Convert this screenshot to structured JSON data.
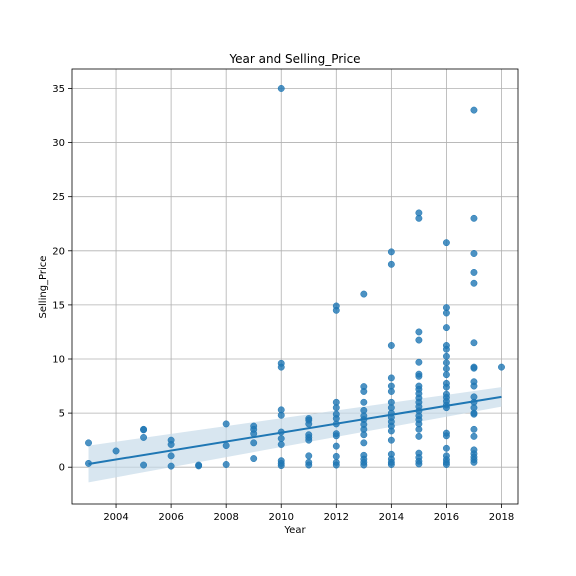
{
  "chart_data": {
    "type": "scatter",
    "title": "Year and Selling_Price",
    "xlabel": "Year",
    "ylabel": "Selling_Price",
    "xlim": [
      2002.4,
      2018.6
    ],
    "ylim": [
      -3.4,
      36.8
    ],
    "xticks": [
      2004,
      2006,
      2008,
      2010,
      2012,
      2014,
      2016,
      2018
    ],
    "yticks": [
      0,
      5,
      10,
      15,
      20,
      25,
      30,
      35
    ],
    "grid": true,
    "color": "#1f77b4",
    "ci_color": "#c8dcea",
    "regression": {
      "x": [
        2003,
        2018
      ],
      "y": [
        0.3,
        6.5
      ],
      "ci_lower": [
        -1.4,
        5.6
      ],
      "ci_upper": [
        2.0,
        7.4
      ]
    },
    "points": [
      {
        "x": 2003,
        "y": 2.25
      },
      {
        "x": 2003,
        "y": 0.35
      },
      {
        "x": 2004,
        "y": 1.5
      },
      {
        "x": 2005,
        "y": 3.5
      },
      {
        "x": 2005,
        "y": 3.45
      },
      {
        "x": 2005,
        "y": 2.75
      },
      {
        "x": 2005,
        "y": 0.2
      },
      {
        "x": 2006,
        "y": 2.5
      },
      {
        "x": 2006,
        "y": 2.1
      },
      {
        "x": 2006,
        "y": 1.05
      },
      {
        "x": 2006,
        "y": 0.1
      },
      {
        "x": 2007,
        "y": 0.2
      },
      {
        "x": 2007,
        "y": 0.12
      },
      {
        "x": 2008,
        "y": 4.0
      },
      {
        "x": 2008,
        "y": 2.0
      },
      {
        "x": 2008,
        "y": 0.25
      },
      {
        "x": 2009,
        "y": 3.8
      },
      {
        "x": 2009,
        "y": 3.5
      },
      {
        "x": 2009,
        "y": 3.1
      },
      {
        "x": 2009,
        "y": 2.25
      },
      {
        "x": 2009,
        "y": 0.8
      },
      {
        "x": 2010,
        "y": 35.0
      },
      {
        "x": 2010,
        "y": 9.6
      },
      {
        "x": 2010,
        "y": 9.25
      },
      {
        "x": 2010,
        "y": 5.3
      },
      {
        "x": 2010,
        "y": 4.8
      },
      {
        "x": 2010,
        "y": 3.25
      },
      {
        "x": 2010,
        "y": 2.65
      },
      {
        "x": 2010,
        "y": 2.1
      },
      {
        "x": 2010,
        "y": 0.6
      },
      {
        "x": 2010,
        "y": 0.35
      },
      {
        "x": 2010,
        "y": 0.15
      },
      {
        "x": 2011,
        "y": 4.5
      },
      {
        "x": 2011,
        "y": 4.35
      },
      {
        "x": 2011,
        "y": 4.0
      },
      {
        "x": 2011,
        "y": 3.0
      },
      {
        "x": 2011,
        "y": 2.75
      },
      {
        "x": 2011,
        "y": 2.5
      },
      {
        "x": 2011,
        "y": 1.05
      },
      {
        "x": 2011,
        "y": 0.45
      },
      {
        "x": 2011,
        "y": 0.2
      },
      {
        "x": 2012,
        "y": 14.9
      },
      {
        "x": 2012,
        "y": 14.5
      },
      {
        "x": 2012,
        "y": 6.0
      },
      {
        "x": 2012,
        "y": 5.5
      },
      {
        "x": 2012,
        "y": 4.9
      },
      {
        "x": 2012,
        "y": 4.5
      },
      {
        "x": 2012,
        "y": 4.0
      },
      {
        "x": 2012,
        "y": 3.1
      },
      {
        "x": 2012,
        "y": 2.9
      },
      {
        "x": 2012,
        "y": 1.95
      },
      {
        "x": 2012,
        "y": 1.0
      },
      {
        "x": 2012,
        "y": 0.45
      },
      {
        "x": 2012,
        "y": 0.2
      },
      {
        "x": 2013,
        "y": 16.0
      },
      {
        "x": 2013,
        "y": 7.45
      },
      {
        "x": 2013,
        "y": 7.0
      },
      {
        "x": 2013,
        "y": 6.0
      },
      {
        "x": 2013,
        "y": 5.25
      },
      {
        "x": 2013,
        "y": 4.75
      },
      {
        "x": 2013,
        "y": 4.4
      },
      {
        "x": 2013,
        "y": 3.95
      },
      {
        "x": 2013,
        "y": 3.5
      },
      {
        "x": 2013,
        "y": 3.0
      },
      {
        "x": 2013,
        "y": 2.25
      },
      {
        "x": 2013,
        "y": 1.1
      },
      {
        "x": 2013,
        "y": 0.75
      },
      {
        "x": 2013,
        "y": 0.45
      },
      {
        "x": 2013,
        "y": 0.2
      },
      {
        "x": 2014,
        "y": 19.9
      },
      {
        "x": 2014,
        "y": 18.75
      },
      {
        "x": 2014,
        "y": 11.25
      },
      {
        "x": 2014,
        "y": 8.25
      },
      {
        "x": 2014,
        "y": 7.5
      },
      {
        "x": 2014,
        "y": 7.0
      },
      {
        "x": 2014,
        "y": 6.0
      },
      {
        "x": 2014,
        "y": 5.5
      },
      {
        "x": 2014,
        "y": 5.0
      },
      {
        "x": 2014,
        "y": 4.6
      },
      {
        "x": 2014,
        "y": 4.2
      },
      {
        "x": 2014,
        "y": 3.8
      },
      {
        "x": 2014,
        "y": 3.35
      },
      {
        "x": 2014,
        "y": 2.5
      },
      {
        "x": 2014,
        "y": 1.2
      },
      {
        "x": 2014,
        "y": 0.75
      },
      {
        "x": 2014,
        "y": 0.45
      },
      {
        "x": 2014,
        "y": 0.25
      },
      {
        "x": 2015,
        "y": 23.5
      },
      {
        "x": 2015,
        "y": 23.0
      },
      {
        "x": 2015,
        "y": 12.5
      },
      {
        "x": 2015,
        "y": 11.75
      },
      {
        "x": 2015,
        "y": 9.7
      },
      {
        "x": 2015,
        "y": 8.6
      },
      {
        "x": 2015,
        "y": 8.4
      },
      {
        "x": 2015,
        "y": 7.5
      },
      {
        "x": 2015,
        "y": 7.2
      },
      {
        "x": 2015,
        "y": 6.8
      },
      {
        "x": 2015,
        "y": 6.4
      },
      {
        "x": 2015,
        "y": 6.0
      },
      {
        "x": 2015,
        "y": 5.6
      },
      {
        "x": 2015,
        "y": 5.2
      },
      {
        "x": 2015,
        "y": 4.75
      },
      {
        "x": 2015,
        "y": 4.4
      },
      {
        "x": 2015,
        "y": 4.0
      },
      {
        "x": 2015,
        "y": 3.5
      },
      {
        "x": 2015,
        "y": 2.85
      },
      {
        "x": 2015,
        "y": 1.3
      },
      {
        "x": 2015,
        "y": 0.9
      },
      {
        "x": 2015,
        "y": 0.55
      },
      {
        "x": 2015,
        "y": 0.3
      },
      {
        "x": 2016,
        "y": 20.75
      },
      {
        "x": 2016,
        "y": 14.75
      },
      {
        "x": 2016,
        "y": 14.25
      },
      {
        "x": 2016,
        "y": 12.9
      },
      {
        "x": 2016,
        "y": 11.25
      },
      {
        "x": 2016,
        "y": 10.9
      },
      {
        "x": 2016,
        "y": 10.25
      },
      {
        "x": 2016,
        "y": 9.65
      },
      {
        "x": 2016,
        "y": 9.1
      },
      {
        "x": 2016,
        "y": 8.55
      },
      {
        "x": 2016,
        "y": 7.75
      },
      {
        "x": 2016,
        "y": 7.4
      },
      {
        "x": 2016,
        "y": 6.75
      },
      {
        "x": 2016,
        "y": 6.45
      },
      {
        "x": 2016,
        "y": 6.1
      },
      {
        "x": 2016,
        "y": 5.75
      },
      {
        "x": 2016,
        "y": 5.5
      },
      {
        "x": 2016,
        "y": 3.15
      },
      {
        "x": 2016,
        "y": 2.9
      },
      {
        "x": 2016,
        "y": 1.75
      },
      {
        "x": 2016,
        "y": 1.05
      },
      {
        "x": 2016,
        "y": 0.7
      },
      {
        "x": 2016,
        "y": 0.45
      },
      {
        "x": 2016,
        "y": 0.25
      },
      {
        "x": 2017,
        "y": 33.0
      },
      {
        "x": 2017,
        "y": 23.0
      },
      {
        "x": 2017,
        "y": 19.75
      },
      {
        "x": 2017,
        "y": 18.0
      },
      {
        "x": 2017,
        "y": 17.0
      },
      {
        "x": 2017,
        "y": 11.5
      },
      {
        "x": 2017,
        "y": 9.25
      },
      {
        "x": 2017,
        "y": 9.15
      },
      {
        "x": 2017,
        "y": 7.9
      },
      {
        "x": 2017,
        "y": 7.5
      },
      {
        "x": 2017,
        "y": 6.5
      },
      {
        "x": 2017,
        "y": 6.0
      },
      {
        "x": 2017,
        "y": 5.5
      },
      {
        "x": 2017,
        "y": 5.0
      },
      {
        "x": 2017,
        "y": 4.9
      },
      {
        "x": 2017,
        "y": 3.5
      },
      {
        "x": 2017,
        "y": 2.85
      },
      {
        "x": 2017,
        "y": 1.6
      },
      {
        "x": 2017,
        "y": 1.25
      },
      {
        "x": 2017,
        "y": 0.95
      },
      {
        "x": 2017,
        "y": 0.7
      },
      {
        "x": 2017,
        "y": 0.45
      },
      {
        "x": 2018,
        "y": 9.25
      }
    ]
  }
}
